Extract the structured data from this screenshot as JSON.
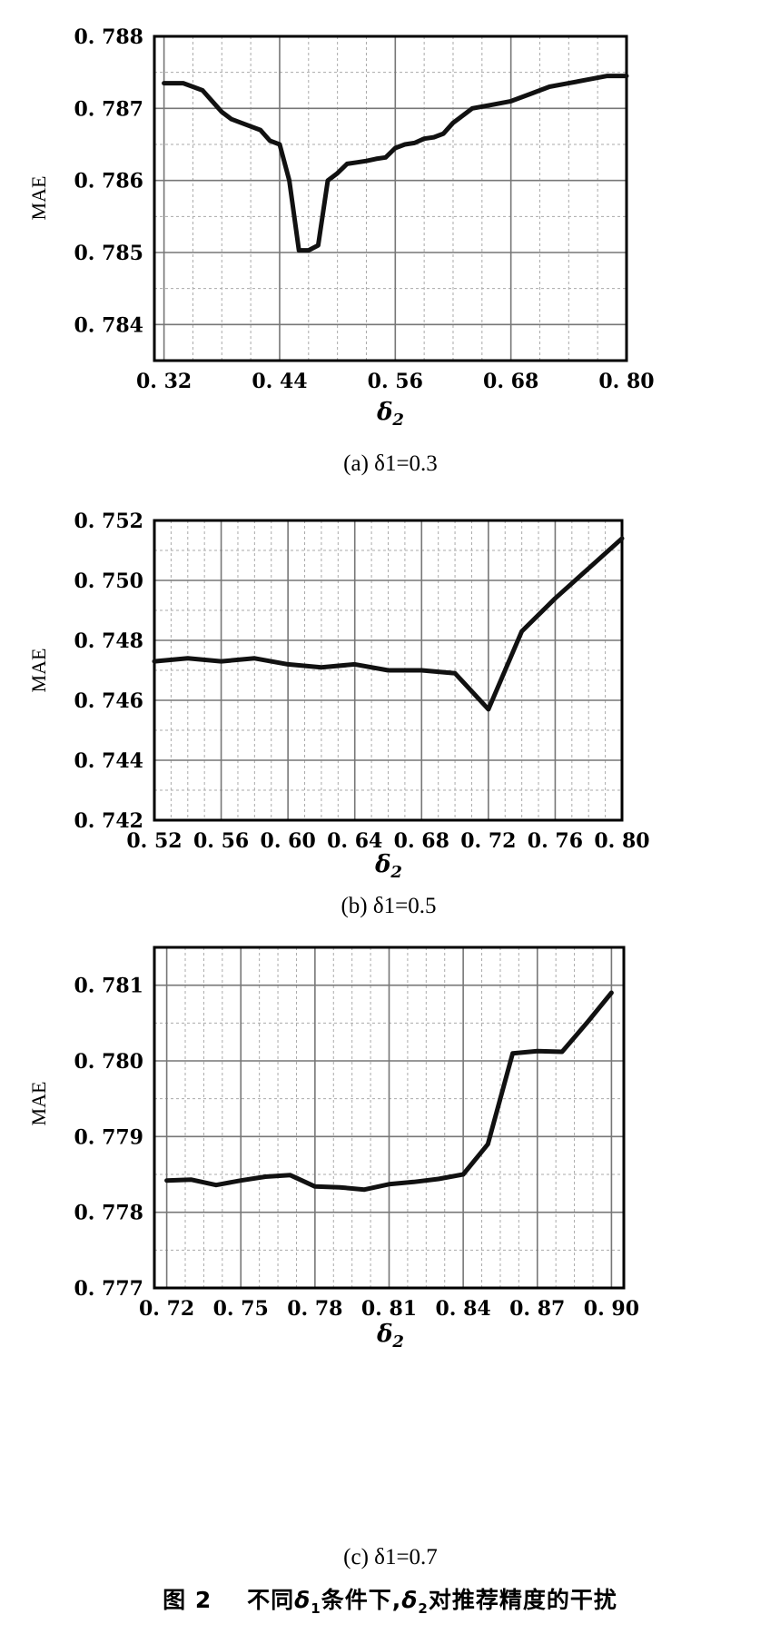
{
  "figure": {
    "label": "图 2",
    "caption_pre": "不同",
    "caption_var1": "δ",
    "caption_sub1": "1",
    "caption_mid": "条件下,",
    "caption_var2": "δ",
    "caption_sub2": "2",
    "caption_post": "对推荐精度的干扰"
  },
  "chart_data": [
    {
      "type": "line",
      "subcaption": "(a) δ1=0.3",
      "xlabel": "δ2",
      "ylabel": "MAE",
      "xlim": [
        0.31,
        0.8
      ],
      "ylim": [
        0.7835,
        0.788
      ],
      "xticks": [
        0.32,
        0.44,
        0.56,
        0.68,
        0.8
      ],
      "xtick_labels": [
        "0. 32",
        "0. 44",
        "0. 56",
        "0. 68",
        "0. 80"
      ],
      "yticks": [
        0.784,
        0.785,
        0.786,
        0.787,
        0.788
      ],
      "ytick_labels": [
        "0. 784",
        "0. 785",
        "0. 786",
        "0. 787",
        "0. 788"
      ],
      "grid": true,
      "series": [
        {
          "x": [
            0.32,
            0.34,
            0.35,
            0.36,
            0.37,
            0.38,
            0.39,
            0.4,
            0.42,
            0.43,
            0.44,
            0.45,
            0.46,
            0.47,
            0.48,
            0.49,
            0.5,
            0.51,
            0.52,
            0.53,
            0.54,
            0.55,
            0.56,
            0.57,
            0.58,
            0.59,
            0.6,
            0.61,
            0.62,
            0.63,
            0.64,
            0.66,
            0.68,
            0.7,
            0.72,
            0.74,
            0.76,
            0.78,
            0.8
          ],
          "y": [
            0.78735,
            0.78735,
            0.7873,
            0.78725,
            0.7871,
            0.78695,
            0.78685,
            0.7868,
            0.7867,
            0.78655,
            0.7865,
            0.786,
            0.78503,
            0.78503,
            0.7851,
            0.786,
            0.7861,
            0.78623,
            0.78625,
            0.78627,
            0.7863,
            0.78632,
            0.78645,
            0.7865,
            0.78652,
            0.78658,
            0.7866,
            0.78665,
            0.7868,
            0.7869,
            0.787,
            0.78705,
            0.7871,
            0.7872,
            0.7873,
            0.78735,
            0.7874,
            0.78745,
            0.78745
          ]
        }
      ]
    },
    {
      "type": "line",
      "subcaption": "(b) δ1=0.5",
      "xlabel": "δ2",
      "ylabel": "MAE",
      "xlim": [
        0.52,
        0.8
      ],
      "ylim": [
        0.742,
        0.752
      ],
      "xticks": [
        0.52,
        0.56,
        0.6,
        0.64,
        0.68,
        0.72,
        0.76,
        0.8
      ],
      "xtick_labels": [
        "0. 52",
        "0. 56",
        "0. 60",
        "0. 64",
        "0. 68",
        "0. 72",
        "0. 76",
        "0. 80"
      ],
      "yticks": [
        0.742,
        0.744,
        0.746,
        0.748,
        0.75,
        0.752
      ],
      "ytick_labels": [
        "0. 742",
        "0. 744",
        "0. 746",
        "0. 748",
        "0. 750",
        "0. 752"
      ],
      "grid": true,
      "series": [
        {
          "x": [
            0.52,
            0.54,
            0.56,
            0.58,
            0.6,
            0.62,
            0.64,
            0.66,
            0.68,
            0.7,
            0.72,
            0.74,
            0.76,
            0.78,
            0.8
          ],
          "y": [
            0.7473,
            0.7474,
            0.7473,
            0.7474,
            0.7472,
            0.7471,
            0.7472,
            0.747,
            0.747,
            0.7469,
            0.7457,
            0.7483,
            0.7494,
            0.7504,
            0.7514
          ]
        }
      ]
    },
    {
      "type": "line",
      "subcaption": "(c) δ1=0.7",
      "xlabel": "δ2",
      "ylabel": "MAE",
      "xlim": [
        0.715,
        0.905
      ],
      "ylim": [
        0.777,
        0.7815
      ],
      "xticks": [
        0.72,
        0.75,
        0.78,
        0.81,
        0.84,
        0.87,
        0.9
      ],
      "xtick_labels": [
        "0. 72",
        "0. 75",
        "0. 78",
        "0. 81",
        "0. 84",
        "0. 87",
        "0. 90"
      ],
      "yticks": [
        0.777,
        0.778,
        0.779,
        0.78,
        0.781
      ],
      "ytick_labels": [
        "0. 777",
        "0. 778",
        "0. 779",
        "0. 780",
        "0. 781"
      ],
      "grid": true,
      "series": [
        {
          "x": [
            0.72,
            0.73,
            0.74,
            0.75,
            0.76,
            0.77,
            0.78,
            0.79,
            0.8,
            0.81,
            0.82,
            0.83,
            0.84,
            0.85,
            0.86,
            0.87,
            0.88,
            0.89,
            0.9
          ],
          "y": [
            0.77842,
            0.77843,
            0.77836,
            0.77842,
            0.77847,
            0.77849,
            0.77834,
            0.77833,
            0.7783,
            0.77837,
            0.7784,
            0.77844,
            0.7785,
            0.7789,
            0.7801,
            0.78013,
            0.78012,
            0.7805,
            0.7809
          ]
        }
      ]
    }
  ]
}
